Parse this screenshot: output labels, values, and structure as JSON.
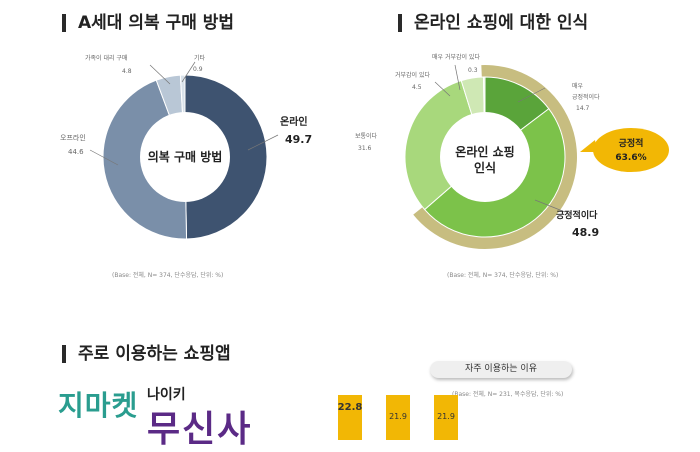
{
  "sections": {
    "purchase_title": "A세대 의복 구매 방법",
    "perception_title": "온라인 쇼핑에 대한 인식",
    "shopping_app_title": "주로 이용하는 쇼핑앱"
  },
  "chart_data": [
    {
      "type": "pie",
      "donut": true,
      "center_label": "의복 구매 방법",
      "slices": [
        {
          "label": "온라인",
          "value": 49.7,
          "color": "#3e5370"
        },
        {
          "label": "오프라인",
          "value": 44.6,
          "color": "#7a8fa9"
        },
        {
          "label": "가족이 대리 구매",
          "value": 4.8,
          "color": "#b9c7d6"
        },
        {
          "label": "기타",
          "value": 0.9,
          "color": "#d9e2ea"
        }
      ],
      "note": "(Base: 전체, N= 374, 단수응답, 단위: %)"
    },
    {
      "type": "pie",
      "donut": true,
      "center_label_line1": "온라인 쇼핑",
      "center_label_line2": "인식",
      "slices": [
        {
          "label": "매우 긍정적이다",
          "value": 14.7,
          "color": "#5aa43a"
        },
        {
          "label": "긍정적이다",
          "value": 48.9,
          "color": "#7cc24a"
        },
        {
          "label": "보통이다",
          "value": 31.6,
          "color": "#a8d87c"
        },
        {
          "label": "거부감이 있다",
          "value": 4.5,
          "color": "#cfe8b4"
        },
        {
          "label": "매우 거부감이 있다",
          "value": 0.3,
          "color": "#e6f2d8"
        }
      ],
      "callout": {
        "label": "긍정적",
        "value": "63.6%",
        "color": "#f2b705"
      },
      "note": "(Base: 전체, N= 374, 단수응답, 단위: %)"
    },
    {
      "type": "bar",
      "title": "자주 이용하는 이유",
      "values": [
        22.8,
        21.9,
        21.9
      ],
      "bar_color": "#f2b705",
      "note": "(Base: 전체, N= 231, 복수응답, 단위: %)"
    }
  ],
  "logos": {
    "logo1": "지마켓",
    "logo2": "나이키",
    "logo3": "무신사"
  }
}
